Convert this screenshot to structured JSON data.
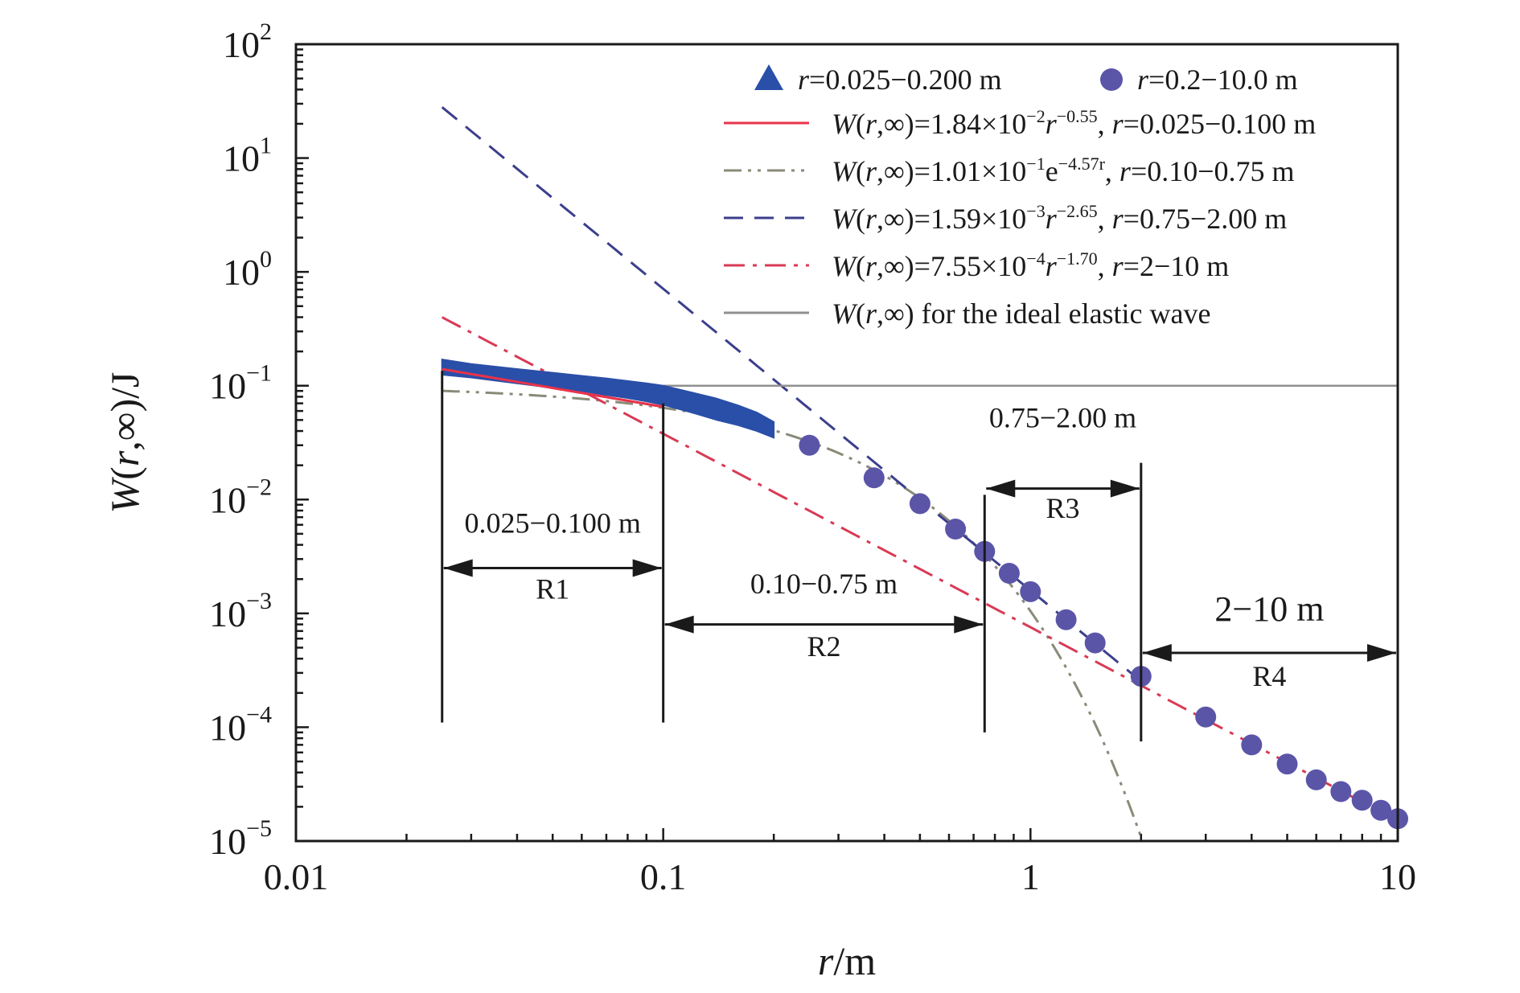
{
  "chart_data": {
    "type": "scatter",
    "title": "",
    "xlabel": {
      "var": "r",
      "unit": "/m"
    },
    "ylabel": {
      "pre": "W",
      "paren": "(",
      "var": "r",
      "post": ",∞)/J"
    },
    "x_scale": "log",
    "y_scale": "log",
    "xlim": [
      0.01,
      10
    ],
    "ylim": [
      1e-05,
      100
    ],
    "x_ticks": [
      {
        "value": 0.01,
        "label": "0.01"
      },
      {
        "value": 0.1,
        "label": "0.1"
      },
      {
        "value": 1,
        "label": "1"
      },
      {
        "value": 10,
        "label": "10"
      }
    ],
    "y_ticks": [
      {
        "value": 100,
        "base": "10",
        "exp": "2"
      },
      {
        "value": 10,
        "base": "10",
        "exp": "1"
      },
      {
        "value": 1,
        "base": "10",
        "exp": "0"
      },
      {
        "value": 0.1,
        "base": "10",
        "exp": "−1"
      },
      {
        "value": 0.01,
        "base": "10",
        "exp": "−2"
      },
      {
        "value": 0.001,
        "base": "10",
        "exp": "−3"
      },
      {
        "value": 0.0001,
        "base": "10",
        "exp": "−4"
      },
      {
        "value": 1e-05,
        "base": "10",
        "exp": "−5"
      }
    ],
    "colors": {
      "triangles": "#2a4fa8",
      "circles": "#5b55a8",
      "fit1": "#e8334a",
      "fit2": "#8a8a78",
      "fit3": "#3b3f8c",
      "fit4": "#d83a55",
      "ideal": "#909090",
      "axis": "#1a1a1a"
    },
    "series": [
      {
        "name": "r=0.025−0.200 m",
        "legend": [
          {
            "t": "r",
            "i": true
          },
          {
            "t": "=0.025−0.200 m"
          }
        ],
        "kind": "triangle-band",
        "x": [
          0.025,
          0.03,
          0.04,
          0.05,
          0.06,
          0.07,
          0.08,
          0.09,
          0.1,
          0.12,
          0.14,
          0.16,
          0.18,
          0.2
        ],
        "y_upper": [
          0.17,
          0.155,
          0.14,
          0.13,
          0.122,
          0.116,
          0.11,
          0.105,
          0.1,
          0.087,
          0.077,
          0.067,
          0.058,
          0.048
        ],
        "y_lower": [
          0.125,
          0.118,
          0.105,
          0.096,
          0.09,
          0.083,
          0.078,
          0.073,
          0.068,
          0.058,
          0.05,
          0.045,
          0.04,
          0.035
        ]
      },
      {
        "name": "r=0.2−10.0 m",
        "legend": [
          {
            "t": "r",
            "i": true
          },
          {
            "t": "=0.2−10.0 m"
          }
        ],
        "kind": "circles",
        "x": [
          0.25,
          0.375,
          0.5,
          0.625,
          0.75,
          0.875,
          1.0,
          1.25,
          1.5,
          2.0,
          3.0,
          4.0,
          5.0,
          6.0,
          7.0,
          8.0,
          9.0,
          10.0
        ],
        "y": [
          0.03,
          0.0155,
          0.0092,
          0.0055,
          0.0035,
          0.00225,
          0.00155,
          0.00088,
          0.00055,
          0.00028,
          0.000123,
          7e-05,
          4.75e-05,
          3.45e-05,
          2.72e-05,
          2.28e-05,
          1.86e-05,
          1.57e-05
        ]
      },
      {
        "name": "fit1",
        "legend": [
          {
            "t": "W",
            "i": true
          },
          {
            "t": "("
          },
          {
            "t": "r",
            "i": true
          },
          {
            "t": ",∞)=1.84×10"
          },
          {
            "t": "−2",
            "sup": true
          },
          {
            "t": "r",
            "i": true
          },
          {
            "t": "−0.55",
            "sup": true
          },
          {
            "t": ", "
          },
          {
            "t": "r",
            "i": true
          },
          {
            "t": "=0.025−0.100 m"
          }
        ],
        "kind": "curve",
        "dash": "solid",
        "formula": "power",
        "a": 0.0184,
        "b": -0.55,
        "x_range": [
          0.025,
          0.1
        ]
      },
      {
        "name": "fit2",
        "legend": [
          {
            "t": "W",
            "i": true
          },
          {
            "t": "("
          },
          {
            "t": "r",
            "i": true
          },
          {
            "t": ",∞)=1.01×10"
          },
          {
            "t": "−1",
            "sup": true
          },
          {
            "t": "e"
          },
          {
            "t": "−4.57r",
            "sup": true
          },
          {
            "t": ", "
          },
          {
            "t": "r",
            "i": true
          },
          {
            "t": "=0.10−0.75 m"
          }
        ],
        "kind": "curve",
        "dash": "dashdotdot",
        "formula": "exp",
        "a": 0.101,
        "b": -4.57,
        "x_range": [
          0.025,
          2.0
        ]
      },
      {
        "name": "fit3",
        "legend": [
          {
            "t": "W",
            "i": true
          },
          {
            "t": "("
          },
          {
            "t": "r",
            "i": true
          },
          {
            "t": ",∞)=1.59×10"
          },
          {
            "t": "−3",
            "sup": true
          },
          {
            "t": "r",
            "i": true
          },
          {
            "t": "−2.65",
            "sup": true
          },
          {
            "t": ", "
          },
          {
            "t": "r",
            "i": true
          },
          {
            "t": "=0.75−2.00 m"
          }
        ],
        "kind": "curve",
        "dash": "dash",
        "formula": "power",
        "a": 0.00159,
        "b": -2.65,
        "x_range": [
          0.025,
          2.0
        ]
      },
      {
        "name": "fit4",
        "legend": [
          {
            "t": "W",
            "i": true
          },
          {
            "t": "("
          },
          {
            "t": "r",
            "i": true
          },
          {
            "t": ",∞)=7.55×10"
          },
          {
            "t": "−4",
            "sup": true
          },
          {
            "t": "r",
            "i": true
          },
          {
            "t": "−1.70",
            "sup": true
          },
          {
            "t": ", "
          },
          {
            "t": "r",
            "i": true
          },
          {
            "t": "=2−10 m"
          }
        ],
        "kind": "curve",
        "dash": "dashdot",
        "formula": "power",
        "a": 0.000755,
        "b": -1.7,
        "x_range": [
          0.025,
          10.0
        ]
      },
      {
        "name": "ideal",
        "legend": [
          {
            "t": "W",
            "i": true
          },
          {
            "t": "("
          },
          {
            "t": "r",
            "i": true
          },
          {
            "t": ",∞) for the ideal elastic wave"
          }
        ],
        "kind": "curve",
        "dash": "solid",
        "formula": "const",
        "a": 0.1,
        "x_range": [
          0.1,
          10.0
        ]
      }
    ],
    "regions": [
      {
        "id": "R1",
        "label": "R1",
        "range_label": "0.025−0.100 m",
        "x_start": 0.025,
        "x_end": 0.1,
        "arrow_y": 0.0025,
        "bottom_y": 0.00011,
        "text_y": 0.0051,
        "name_y": 0.00135
      },
      {
        "id": "R2",
        "label": "R2",
        "range_label": "0.10−0.75 m",
        "x_start": 0.1,
        "x_end": 0.75,
        "arrow_y": 0.0008,
        "bottom_y": 9e-05,
        "text_y": 0.0015,
        "name_y": 0.00042
      },
      {
        "id": "R3",
        "label": "R3",
        "range_label": "0.75−2.00 m",
        "x_start": 0.75,
        "x_end": 2.0,
        "arrow_y": 0.0125,
        "bottom_y": 7.5e-05,
        "text_y": 0.043,
        "name_y": 0.0069
      },
      {
        "id": "R4",
        "label": "R4",
        "range_label": "2−10 m",
        "x_start": 2.0,
        "x_end": 10.0,
        "arrow_y": 0.00045,
        "bottom_y": 0.00028,
        "text_y": 0.00086,
        "name_y": 0.00023,
        "big": true
      }
    ],
    "legend": {
      "position": "top-right"
    },
    "grid": false
  }
}
